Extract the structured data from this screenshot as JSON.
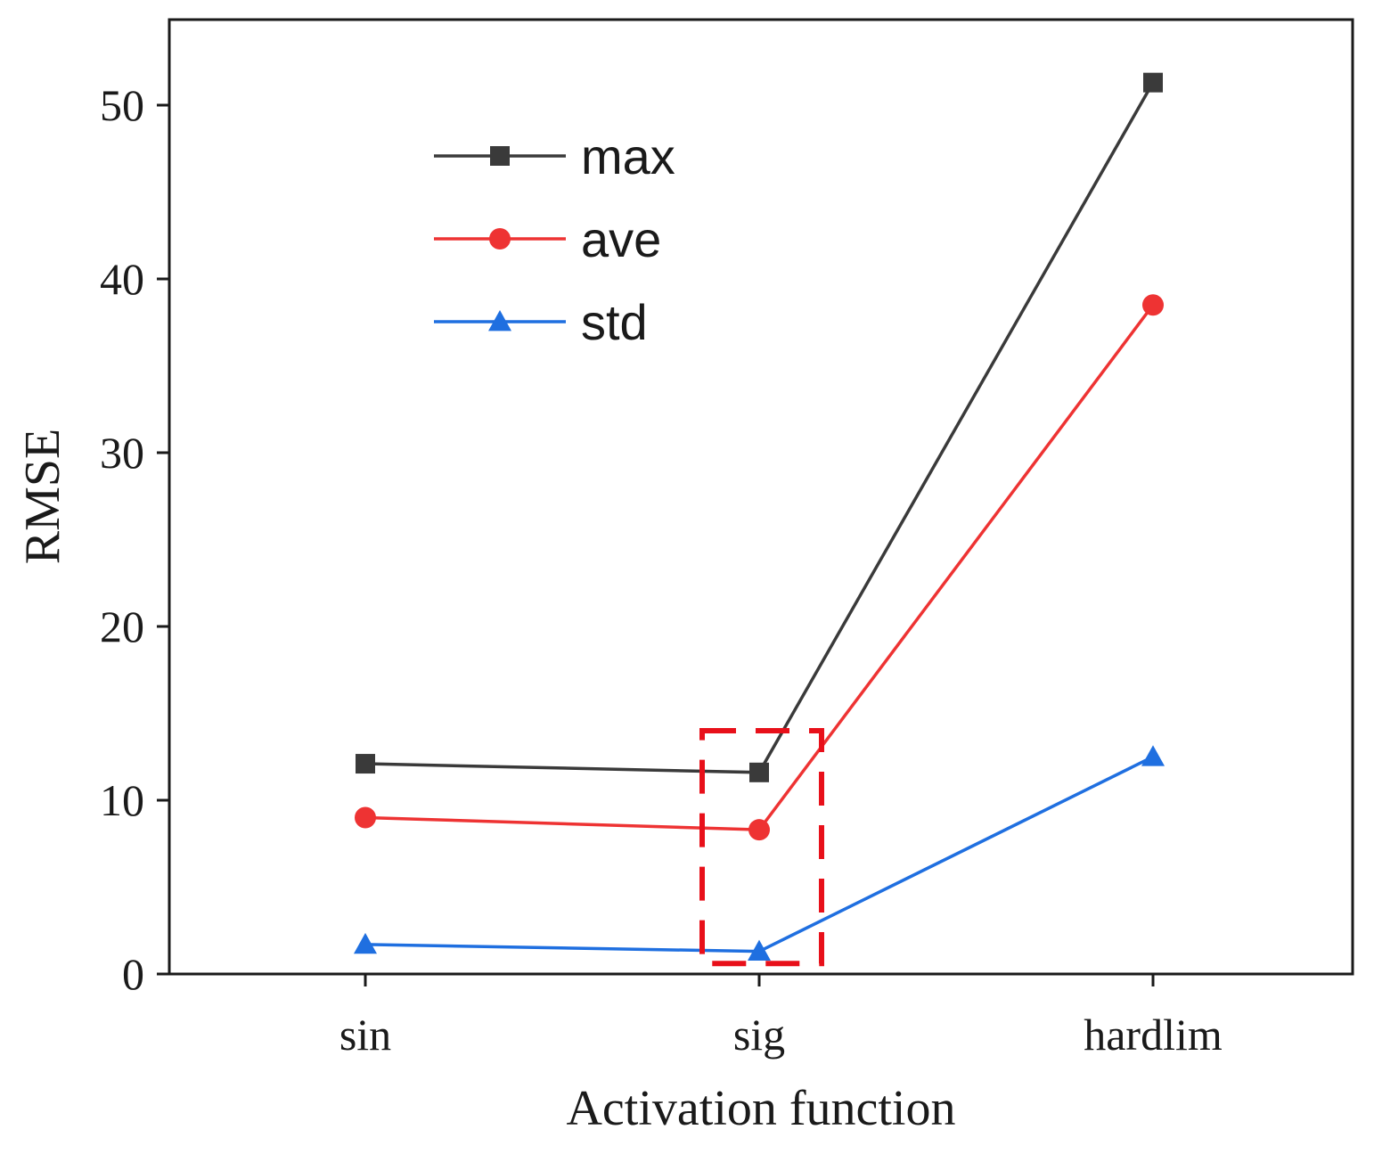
{
  "chart_data": {
    "type": "line",
    "title": "",
    "xlabel": "Activation function",
    "ylabel": "RMSE",
    "categories": [
      "sin",
      "sig",
      "hardlim"
    ],
    "ylim": [
      0,
      55
    ],
    "yticks": [
      0,
      10,
      20,
      30,
      40,
      50
    ],
    "ytick_labels": [
      "0",
      "10",
      "20",
      "30",
      "40",
      "50"
    ],
    "grid": false,
    "legend_position": "top-left",
    "series": [
      {
        "name": "max",
        "marker": "square",
        "color": "#3a3a3a",
        "values": [
          12.1,
          11.6,
          51.3
        ]
      },
      {
        "name": "ave",
        "marker": "circle",
        "color": "#ee3333",
        "values": [
          9.0,
          8.3,
          38.5
        ]
      },
      {
        "name": "std",
        "marker": "triangle",
        "color": "#1f6fe0",
        "values": [
          1.7,
          1.3,
          12.5
        ]
      }
    ],
    "highlight": {
      "category": "sig",
      "color": "#e8101a",
      "style": "dashed"
    }
  }
}
